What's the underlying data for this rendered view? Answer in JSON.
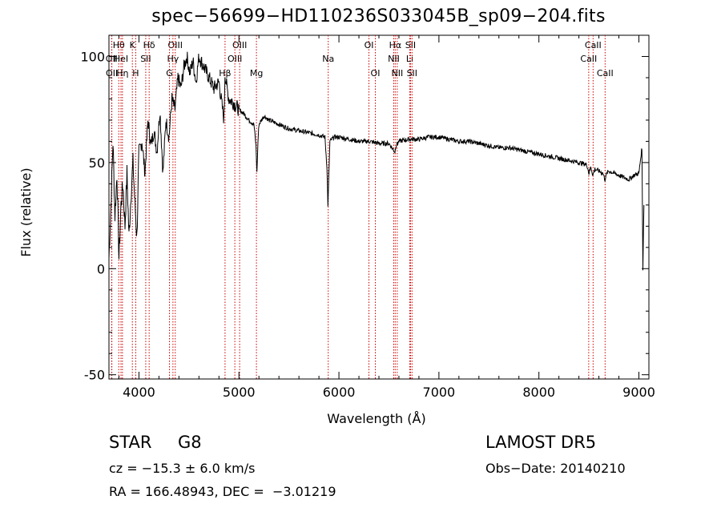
{
  "chart_data": {
    "type": "line",
    "title": "spec−56699−HD110236S033045B_sp09−204.fits",
    "xlabel": "Wavelength (Å)",
    "ylabel": "Flux (relative)",
    "xlim": [
      3700,
      9100
    ],
    "ylim": [
      -52,
      110
    ],
    "xticks": [
      4000,
      5000,
      6000,
      7000,
      8000,
      9000
    ],
    "yticks": [
      -50,
      0,
      50,
      100
    ],
    "grid": false,
    "line_color": "#000000",
    "marker_color": "#cc0000",
    "series": [
      {
        "x": [
          3700,
          3720,
          3740,
          3760,
          3780,
          3800,
          3820,
          3840,
          3860,
          3880,
          3900,
          3920,
          3940,
          3960,
          3980,
          4000,
          4030,
          4060,
          4090,
          4120,
          4150,
          4180,
          4210,
          4240,
          4270,
          4300,
          4330,
          4360,
          4390,
          4420,
          4450,
          4480,
          4510,
          4540,
          4570,
          4600,
          4650,
          4700,
          4750,
          4800,
          4850,
          4860,
          4880,
          4900,
          4950,
          5000,
          5050,
          5100,
          5150,
          5170,
          5180,
          5190,
          5200,
          5250,
          5300,
          5400,
          5500,
          5600,
          5700,
          5800,
          5860,
          5880,
          5890,
          5900,
          5910,
          5950,
          6000,
          6100,
          6200,
          6300,
          6400,
          6500,
          6560,
          6570,
          6600,
          6700,
          6800,
          6900,
          7000,
          7100,
          7200,
          7300,
          7400,
          7500,
          7600,
          7700,
          7800,
          7900,
          8000,
          8100,
          8200,
          8300,
          8400,
          8480,
          8500,
          8520,
          8540,
          8560,
          8600,
          8640,
          8660,
          8680,
          8700,
          8750,
          8800,
          8850,
          8900,
          8950,
          9000,
          9030,
          9040,
          9050
        ],
        "y": [
          5,
          30,
          60,
          25,
          45,
          5,
          30,
          40,
          20,
          45,
          15,
          35,
          50,
          30,
          15,
          55,
          60,
          45,
          70,
          58,
          65,
          55,
          75,
          45,
          70,
          62,
          80,
          75,
          90,
          85,
          95,
          100,
          92,
          98,
          88,
          100,
          95,
          90,
          85,
          88,
          70,
          92,
          85,
          80,
          78,
          75,
          73,
          70,
          68,
          58,
          45,
          60,
          68,
          72,
          70,
          68,
          66,
          65,
          64,
          63,
          62,
          48,
          30,
          45,
          60,
          62,
          62,
          61,
          60,
          60,
          59,
          59,
          55,
          58,
          60,
          61,
          61,
          62,
          62,
          61,
          60,
          60,
          59,
          58,
          57,
          57,
          56,
          55,
          54,
          53,
          52,
          51,
          50,
          49,
          45,
          48,
          44,
          47,
          46,
          45,
          42,
          45,
          46,
          45,
          44,
          43,
          42,
          44,
          45,
          57,
          0,
          30
        ]
      }
    ],
    "line_markers": [
      {
        "label": "Hθ",
        "x": 3798,
        "row": 0
      },
      {
        "label": "OII",
        "x": 3727,
        "row": 1
      },
      {
        "label": "OII",
        "x": 3729,
        "row": 2
      },
      {
        "label": "HeI",
        "x": 3820,
        "row": 1
      },
      {
        "label": "Hη",
        "x": 3835,
        "row": 2
      },
      {
        "label": "K",
        "x": 3934,
        "row": 0
      },
      {
        "label": "SII",
        "x": 4068,
        "row": 1
      },
      {
        "label": "H",
        "x": 3968,
        "row": 2
      },
      {
        "label": "Hδ",
        "x": 4102,
        "row": 0
      },
      {
        "label": "OIII",
        "x": 4363,
        "row": 0
      },
      {
        "label": "Hγ",
        "x": 4340,
        "row": 1
      },
      {
        "label": "G",
        "x": 4305,
        "row": 2
      },
      {
        "label": "OIII",
        "x": 5007,
        "row": 0
      },
      {
        "label": "OIII",
        "x": 4959,
        "row": 1
      },
      {
        "label": "Hβ",
        "x": 4861,
        "row": 2
      },
      {
        "label": "Mg",
        "x": 5175,
        "row": 2
      },
      {
        "label": "Na",
        "x": 5893,
        "row": 1
      },
      {
        "label": "OI",
        "x": 6300,
        "row": 0
      },
      {
        "label": "OI",
        "x": 6364,
        "row": 2
      },
      {
        "label": "Hα",
        "x": 6563,
        "row": 0
      },
      {
        "label": "SII",
        "x": 6716,
        "row": 0
      },
      {
        "label": "NII",
        "x": 6548,
        "row": 1
      },
      {
        "label": "Li",
        "x": 6708,
        "row": 1
      },
      {
        "label": "NII",
        "x": 6583,
        "row": 2
      },
      {
        "label": "SII",
        "x": 6731,
        "row": 2
      },
      {
        "label": "CaII",
        "x": 8542,
        "row": 0
      },
      {
        "label": "CaII",
        "x": 8498,
        "row": 1
      },
      {
        "label": "CaII",
        "x": 8662,
        "row": 2
      }
    ]
  },
  "info": {
    "object_type": "STAR",
    "subclass": "G8",
    "redshift": "cz = −15.3 ± 6.0 km/s",
    "coords": "RA = 166.48943, DEC =  −3.01219",
    "survey": "LAMOST DR5",
    "obs_date": "Obs−Date: 20140210"
  }
}
